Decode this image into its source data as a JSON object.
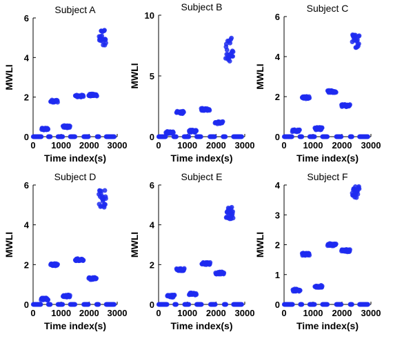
{
  "chart_data": [
    {
      "type": "scatter",
      "title": "Subject A",
      "xlabel": "Time index(s)",
      "ylabel": "MWLI",
      "xlim": [
        0,
        3000
      ],
      "ylim": [
        0,
        6
      ],
      "xticks": [
        "0",
        "1000",
        "2000",
        "3000"
      ],
      "yticks": [
        "0",
        "2",
        "4",
        "6"
      ],
      "marker_color": "#1f2cf0",
      "segments": [
        {
          "x_start": 0,
          "x_end": 300,
          "y": 0.0
        },
        {
          "x_start": 300,
          "x_end": 540,
          "y": 0.38
        },
        {
          "x_start": 540,
          "x_end": 620,
          "y": 0.0
        },
        {
          "x_start": 620,
          "x_end": 880,
          "y": 1.8
        },
        {
          "x_start": 880,
          "x_end": 1060,
          "y": 0.0
        },
        {
          "x_start": 1060,
          "x_end": 1320,
          "y": 0.5
        },
        {
          "x_start": 1320,
          "x_end": 1500,
          "y": 0.0
        },
        {
          "x_start": 1500,
          "x_end": 1800,
          "y": 2.05
        },
        {
          "x_start": 1800,
          "x_end": 1980,
          "y": 0.0
        },
        {
          "x_start": 1980,
          "x_end": 2280,
          "y": 2.1
        },
        {
          "x_start": 2280,
          "x_end": 2350,
          "y": 0.0
        },
        {
          "x_start": 2350,
          "x_end": 2600,
          "y": 5.0,
          "spread": 0.4
        },
        {
          "x_start": 2600,
          "x_end": 2900,
          "y": 0.0
        }
      ]
    },
    {
      "type": "scatter",
      "title": "Subject B",
      "xlabel": "Time index(s)",
      "ylabel": "MWLI",
      "xlim": [
        0,
        3000
      ],
      "ylim": [
        0,
        10
      ],
      "xticks": [
        "0",
        "1000",
        "2000",
        "3000"
      ],
      "yticks": [
        "0",
        "5",
        "10"
      ],
      "marker_color": "#1f2cf0",
      "segments": [
        {
          "x_start": 0,
          "x_end": 250,
          "y": 0.0
        },
        {
          "x_start": 250,
          "x_end": 520,
          "y": 0.35
        },
        {
          "x_start": 520,
          "x_end": 620,
          "y": 0.0
        },
        {
          "x_start": 620,
          "x_end": 880,
          "y": 2.0
        },
        {
          "x_start": 880,
          "x_end": 1060,
          "y": 0.0
        },
        {
          "x_start": 1060,
          "x_end": 1320,
          "y": 0.45
        },
        {
          "x_start": 1320,
          "x_end": 1480,
          "y": 0.0
        },
        {
          "x_start": 1480,
          "x_end": 1780,
          "y": 2.25
        },
        {
          "x_start": 1780,
          "x_end": 1960,
          "y": 0.0
        },
        {
          "x_start": 1960,
          "x_end": 2240,
          "y": 1.15
        },
        {
          "x_start": 2240,
          "x_end": 2330,
          "y": 0.0
        },
        {
          "x_start": 2330,
          "x_end": 2600,
          "y": 7.2,
          "spread": 1.0
        },
        {
          "x_start": 2600,
          "x_end": 2900,
          "y": 0.0
        }
      ]
    },
    {
      "type": "scatter",
      "title": "Subject C",
      "xlabel": "Time index(s)",
      "ylabel": "MWLI",
      "xlim": [
        0,
        3000
      ],
      "ylim": [
        0,
        6
      ],
      "xticks": [
        "0",
        "1000",
        "2000",
        "3000"
      ],
      "yticks": [
        "0",
        "2",
        "4",
        "6"
      ],
      "marker_color": "#1f2cf0",
      "segments": [
        {
          "x_start": 0,
          "x_end": 280,
          "y": 0.0
        },
        {
          "x_start": 280,
          "x_end": 540,
          "y": 0.3
        },
        {
          "x_start": 540,
          "x_end": 620,
          "y": 0.0
        },
        {
          "x_start": 620,
          "x_end": 880,
          "y": 1.95
        },
        {
          "x_start": 880,
          "x_end": 1060,
          "y": 0.0
        },
        {
          "x_start": 1060,
          "x_end": 1320,
          "y": 0.4
        },
        {
          "x_start": 1320,
          "x_end": 1500,
          "y": 0.0
        },
        {
          "x_start": 1500,
          "x_end": 1800,
          "y": 2.25
        },
        {
          "x_start": 1800,
          "x_end": 1980,
          "y": 0.0
        },
        {
          "x_start": 1980,
          "x_end": 2280,
          "y": 1.55
        },
        {
          "x_start": 2280,
          "x_end": 2350,
          "y": 0.0
        },
        {
          "x_start": 2350,
          "x_end": 2600,
          "y": 4.8,
          "spread": 0.35
        },
        {
          "x_start": 2600,
          "x_end": 2900,
          "y": 0.0
        }
      ]
    },
    {
      "type": "scatter",
      "title": "Subject D",
      "xlabel": "Time index(s)",
      "ylabel": "MWLI",
      "xlim": [
        0,
        3000
      ],
      "ylim": [
        0,
        6
      ],
      "xticks": [
        "0",
        "1000",
        "2000",
        "3000"
      ],
      "yticks": [
        "0",
        "2",
        "4",
        "6"
      ],
      "marker_color": "#1f2cf0",
      "segments": [
        {
          "x_start": 0,
          "x_end": 280,
          "y": 0.0
        },
        {
          "x_start": 280,
          "x_end": 540,
          "y": 0.28
        },
        {
          "x_start": 540,
          "x_end": 620,
          "y": 0.0
        },
        {
          "x_start": 620,
          "x_end": 880,
          "y": 2.0
        },
        {
          "x_start": 880,
          "x_end": 1060,
          "y": 0.0
        },
        {
          "x_start": 1060,
          "x_end": 1320,
          "y": 0.42
        },
        {
          "x_start": 1320,
          "x_end": 1500,
          "y": 0.0
        },
        {
          "x_start": 1500,
          "x_end": 1800,
          "y": 2.25
        },
        {
          "x_start": 1800,
          "x_end": 1980,
          "y": 0.0
        },
        {
          "x_start": 1980,
          "x_end": 2260,
          "y": 1.3
        },
        {
          "x_start": 2260,
          "x_end": 2340,
          "y": 0.0
        },
        {
          "x_start": 2340,
          "x_end": 2600,
          "y": 5.3,
          "spread": 0.45
        },
        {
          "x_start": 2600,
          "x_end": 2900,
          "y": 0.0
        }
      ]
    },
    {
      "type": "scatter",
      "title": "Subject E",
      "xlabel": "Time index(s)",
      "ylabel": "MWLI",
      "xlim": [
        0,
        3000
      ],
      "ylim": [
        0,
        6
      ],
      "xticks": [
        "0",
        "1000",
        "2000",
        "3000"
      ],
      "yticks": [
        "0",
        "2",
        "4",
        "6"
      ],
      "marker_color": "#1f2cf0",
      "segments": [
        {
          "x_start": 0,
          "x_end": 300,
          "y": 0.0
        },
        {
          "x_start": 300,
          "x_end": 560,
          "y": 0.42
        },
        {
          "x_start": 560,
          "x_end": 620,
          "y": 0.0
        },
        {
          "x_start": 620,
          "x_end": 900,
          "y": 1.75
        },
        {
          "x_start": 900,
          "x_end": 1060,
          "y": 0.0
        },
        {
          "x_start": 1060,
          "x_end": 1320,
          "y": 0.52
        },
        {
          "x_start": 1320,
          "x_end": 1500,
          "y": 0.0
        },
        {
          "x_start": 1500,
          "x_end": 1800,
          "y": 2.05
        },
        {
          "x_start": 1800,
          "x_end": 1980,
          "y": 0.0
        },
        {
          "x_start": 1980,
          "x_end": 2280,
          "y": 1.58
        },
        {
          "x_start": 2280,
          "x_end": 2350,
          "y": 0.0
        },
        {
          "x_start": 2350,
          "x_end": 2600,
          "y": 4.6,
          "spread": 0.3
        },
        {
          "x_start": 2600,
          "x_end": 2900,
          "y": 0.0
        }
      ]
    },
    {
      "type": "scatter",
      "title": "Subject F",
      "xlabel": "Time index(s)",
      "ylabel": "MWLI",
      "xlim": [
        0,
        3000
      ],
      "ylim": [
        0,
        4
      ],
      "xticks": [
        "0",
        "1000",
        "2000",
        "3000"
      ],
      "yticks": [
        "0",
        "1",
        "2",
        "3",
        "4"
      ],
      "marker_color": "#1f2cf0",
      "segments": [
        {
          "x_start": 0,
          "x_end": 300,
          "y": 0.0
        },
        {
          "x_start": 300,
          "x_end": 560,
          "y": 0.48
        },
        {
          "x_start": 560,
          "x_end": 620,
          "y": 0.0
        },
        {
          "x_start": 620,
          "x_end": 880,
          "y": 1.68
        },
        {
          "x_start": 880,
          "x_end": 1060,
          "y": 0.0
        },
        {
          "x_start": 1060,
          "x_end": 1320,
          "y": 0.6
        },
        {
          "x_start": 1320,
          "x_end": 1500,
          "y": 0.0
        },
        {
          "x_start": 1500,
          "x_end": 1800,
          "y": 2.0
        },
        {
          "x_start": 1800,
          "x_end": 1980,
          "y": 0.0
        },
        {
          "x_start": 1980,
          "x_end": 2280,
          "y": 1.8
        },
        {
          "x_start": 2280,
          "x_end": 2350,
          "y": 0.0
        },
        {
          "x_start": 2350,
          "x_end": 2600,
          "y": 3.75,
          "spread": 0.2
        },
        {
          "x_start": 2600,
          "x_end": 2900,
          "y": 0.0
        }
      ]
    }
  ]
}
